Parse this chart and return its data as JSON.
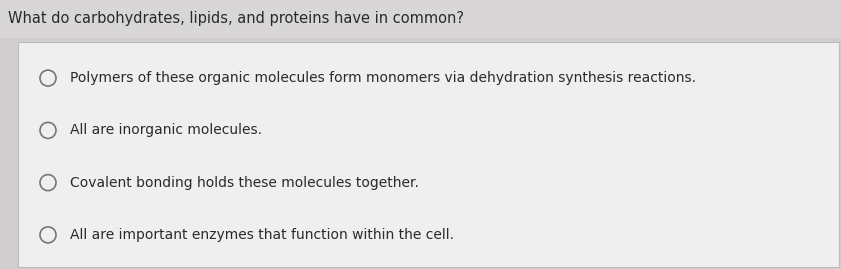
{
  "question": "What do carbohydrates, lipids, and proteins have in common?",
  "options": [
    "Polymers of these organic molecules form monomers via dehydration synthesis reactions.",
    "All are inorganic molecules.",
    "Covalent bonding holds these molecules together.",
    "All are important enzymes that function within the cell."
  ],
  "bg_overall": "#d0cece",
  "bg_box": "#f0efef",
  "bg_question_area": "#d8d6d6",
  "question_color": "#2a2a2a",
  "option_color": "#2a2a2a",
  "question_fontsize": 10.5,
  "option_fontsize": 10.0,
  "circle_color": "#777777",
  "box_border_color": "#bbbbbb"
}
